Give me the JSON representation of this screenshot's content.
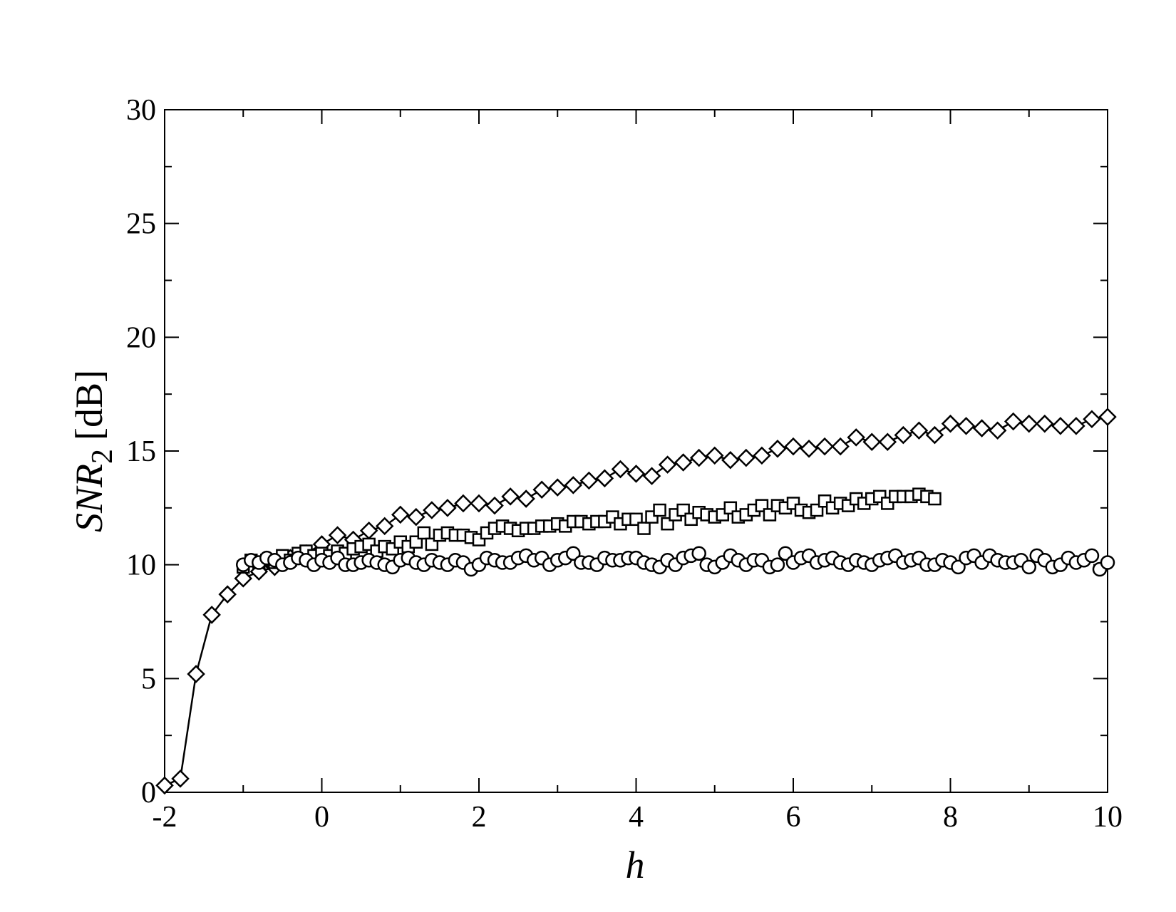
{
  "chart_data": {
    "type": "line",
    "xlabel": "h",
    "ylabel": {
      "text": "SNR",
      "subscript": "2",
      "unit": "[dB]"
    },
    "xlim": [
      -2,
      10
    ],
    "ylim": [
      0,
      30
    ],
    "xticks": [
      -2,
      0,
      2,
      4,
      6,
      8,
      10
    ],
    "yticks": [
      0,
      5,
      10,
      15,
      20,
      25,
      30
    ],
    "xminorticks": [
      -1,
      1,
      3,
      5,
      7,
      9
    ],
    "yminorticks": [
      2.5,
      7.5,
      12.5,
      17.5,
      22.5,
      27.5
    ],
    "grid": false,
    "series": [
      {
        "marker": "diamond",
        "line": true,
        "color": "#000000",
        "x": [
          -2,
          -1.8,
          -1.6,
          -1.4,
          -1.2,
          -1,
          -0.8,
          -0.6,
          -0.4,
          -0.2,
          0,
          0.2,
          0.4,
          0.6,
          0.8,
          1,
          1.2,
          1.4,
          1.6,
          1.8,
          2,
          2.2,
          2.4,
          2.6,
          2.8,
          3,
          3.2,
          3.4,
          3.6,
          3.8,
          4,
          4.2,
          4.4,
          4.6,
          4.8,
          5,
          5.2,
          5.4,
          5.6,
          5.8,
          6,
          6.2,
          6.4,
          6.6,
          6.8,
          7,
          7.2,
          7.4,
          7.6,
          7.8,
          8,
          8.2,
          8.4,
          8.6,
          8.8,
          9,
          9.2,
          9.4,
          9.6,
          9.8,
          10
        ],
        "values": [
          0.3,
          0.6,
          5.2,
          7.8,
          8.7,
          9.4,
          9.7,
          9.9,
          10.3,
          10.5,
          10.9,
          11.3,
          11.1,
          11.5,
          11.7,
          12.2,
          12.1,
          12.4,
          12.5,
          12.7,
          12.7,
          12.6,
          13.0,
          12.9,
          13.3,
          13.4,
          13.5,
          13.7,
          13.8,
          14.2,
          14.0,
          13.9,
          14.4,
          14.5,
          14.7,
          14.8,
          14.6,
          14.7,
          14.8,
          15.1,
          15.2,
          15.1,
          15.2,
          15.2,
          15.6,
          15.4,
          15.4,
          15.7,
          15.9,
          15.7,
          16.2,
          16.1,
          16.0,
          15.9,
          16.3,
          16.2,
          16.2,
          16.1,
          16.1,
          16.4,
          16.5
        ]
      },
      {
        "marker": "square",
        "line": false,
        "color": "#000000",
        "x": [
          -1,
          -0.9,
          -0.8,
          -0.7,
          -0.6,
          -0.5,
          -0.4,
          -0.3,
          -0.2,
          -0.1,
          0,
          0.1,
          0.2,
          0.3,
          0.4,
          0.5,
          0.6,
          0.7,
          0.8,
          0.9,
          1,
          1.1,
          1.2,
          1.3,
          1.4,
          1.5,
          1.6,
          1.7,
          1.8,
          1.9,
          2,
          2.1,
          2.2,
          2.3,
          2.4,
          2.5,
          2.6,
          2.7,
          2.8,
          2.9,
          3,
          3.1,
          3.2,
          3.3,
          3.4,
          3.5,
          3.6,
          3.7,
          3.8,
          3.9,
          4,
          4.1,
          4.2,
          4.3,
          4.4,
          4.5,
          4.6,
          4.7,
          4.8,
          4.9,
          5,
          5.1,
          5.2,
          5.3,
          5.4,
          5.5,
          5.6,
          5.7,
          5.8,
          5.9,
          6,
          6.1,
          6.2,
          6.3,
          6.4,
          6.5,
          6.6,
          6.7,
          6.8,
          6.9,
          7,
          7.1,
          7.2,
          7.3,
          7.4,
          7.5,
          7.6,
          7.7,
          7.8
        ],
        "values": [
          9.9,
          10.2,
          10.1,
          10.2,
          10.1,
          10.4,
          10.2,
          10.5,
          10.6,
          10.4,
          10.5,
          10.4,
          10.6,
          10.5,
          10.7,
          10.8,
          10.9,
          10.6,
          10.8,
          10.7,
          11.0,
          10.8,
          11.0,
          11.4,
          10.9,
          11.3,
          11.4,
          11.3,
          11.3,
          11.2,
          11.1,
          11.4,
          11.6,
          11.7,
          11.6,
          11.5,
          11.6,
          11.6,
          11.7,
          11.7,
          11.8,
          11.7,
          11.9,
          11.9,
          11.8,
          11.9,
          11.9,
          12.1,
          11.8,
          12.0,
          12.0,
          11.6,
          12.1,
          12.4,
          11.8,
          12.2,
          12.4,
          12.0,
          12.3,
          12.2,
          12.1,
          12.2,
          12.5,
          12.1,
          12.2,
          12.4,
          12.6,
          12.2,
          12.6,
          12.5,
          12.7,
          12.4,
          12.3,
          12.4,
          12.8,
          12.5,
          12.7,
          12.6,
          12.9,
          12.7,
          12.9,
          13.0,
          12.7,
          13.0,
          13.0,
          13.0,
          13.1,
          13.0,
          12.9
        ]
      },
      {
        "marker": "circle",
        "line": false,
        "color": "#000000",
        "x": [
          -1,
          -0.9,
          -0.8,
          -0.7,
          -0.6,
          -0.5,
          -0.4,
          -0.3,
          -0.2,
          -0.1,
          0,
          0.1,
          0.2,
          0.3,
          0.4,
          0.5,
          0.6,
          0.7,
          0.8,
          0.9,
          1,
          1.1,
          1.2,
          1.3,
          1.4,
          1.5,
          1.6,
          1.7,
          1.8,
          1.9,
          2,
          2.1,
          2.2,
          2.3,
          2.4,
          2.5,
          2.6,
          2.7,
          2.8,
          2.9,
          3,
          3.1,
          3.2,
          3.3,
          3.4,
          3.5,
          3.6,
          3.7,
          3.8,
          3.9,
          4,
          4.1,
          4.2,
          4.3,
          4.4,
          4.5,
          4.6,
          4.7,
          4.8,
          4.9,
          5,
          5.1,
          5.2,
          5.3,
          5.4,
          5.5,
          5.6,
          5.7,
          5.8,
          5.9,
          6,
          6.1,
          6.2,
          6.3,
          6.4,
          6.5,
          6.6,
          6.7,
          6.8,
          6.9,
          7,
          7.1,
          7.2,
          7.3,
          7.4,
          7.5,
          7.6,
          7.7,
          7.8,
          7.9,
          8,
          8.1,
          8.2,
          8.3,
          8.4,
          8.5,
          8.6,
          8.7,
          8.8,
          8.9,
          9,
          9.1,
          9.2,
          9.3,
          9.4,
          9.5,
          9.6,
          9.7,
          9.8,
          9.9,
          10
        ],
        "values": [
          10.0,
          10.2,
          10.1,
          10.3,
          10.2,
          10.0,
          10.1,
          10.3,
          10.2,
          10.0,
          10.2,
          10.1,
          10.3,
          10.0,
          10.0,
          10.1,
          10.2,
          10.1,
          10.0,
          9.9,
          10.2,
          10.3,
          10.1,
          10.0,
          10.2,
          10.1,
          10.0,
          10.2,
          10.1,
          9.8,
          10.0,
          10.3,
          10.2,
          10.1,
          10.1,
          10.3,
          10.4,
          10.2,
          10.3,
          10.0,
          10.2,
          10.3,
          10.5,
          10.1,
          10.1,
          10.0,
          10.3,
          10.2,
          10.2,
          10.3,
          10.3,
          10.1,
          10.0,
          9.9,
          10.2,
          10.0,
          10.3,
          10.4,
          10.5,
          10.0,
          9.9,
          10.1,
          10.4,
          10.2,
          10.0,
          10.2,
          10.2,
          9.9,
          10.0,
          10.5,
          10.1,
          10.3,
          10.4,
          10.1,
          10.2,
          10.3,
          10.1,
          10.0,
          10.2,
          10.1,
          10.0,
          10.2,
          10.3,
          10.4,
          10.1,
          10.2,
          10.3,
          10.0,
          10.0,
          10.2,
          10.1,
          9.9,
          10.3,
          10.4,
          10.1,
          10.4,
          10.2,
          10.1,
          10.1,
          10.2,
          9.9,
          10.4,
          10.2,
          9.9,
          10.0,
          10.3,
          10.1,
          10.2,
          10.4,
          9.8,
          10.1
        ]
      }
    ]
  }
}
